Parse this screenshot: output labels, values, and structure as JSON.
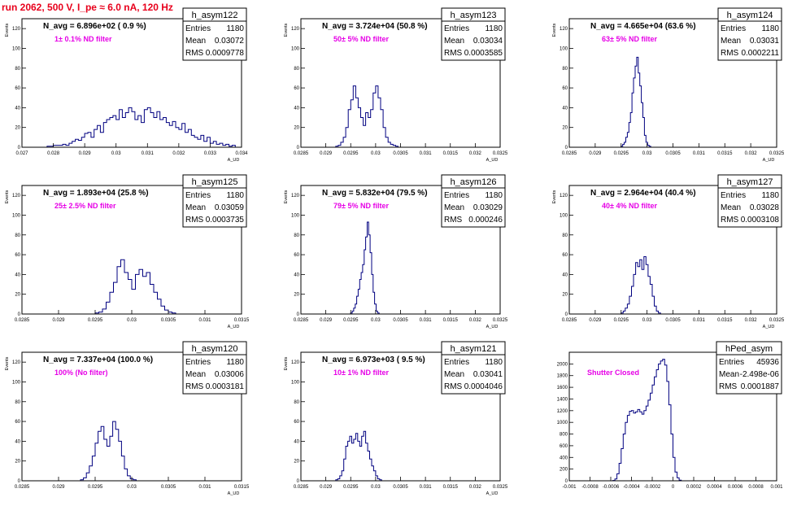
{
  "title": "run 2062,   500 V, I_pe ≈ 6.0 nA, 120 Hz",
  "chart_data": [
    {
      "type": "histogram",
      "name": "h_asym122",
      "n_avg_label": "N_avg = 6.896e+02 ( 0.9 %)",
      "filter_label": "1± 0.1% ND filter",
      "stats": {
        "entries": "1180",
        "mean": "0.03072",
        "rms": "0.0009778"
      },
      "ylabel": "Events",
      "xlabel": "A_UD",
      "xlim": [
        0.027,
        0.034
      ],
      "ylim": [
        0,
        130
      ],
      "xticks": [
        "0.027",
        "0.028",
        "0.029",
        "0.03",
        "0.031",
        "0.032",
        "0.033",
        "0.034"
      ],
      "yticks": [
        "0",
        "20",
        "40",
        "60",
        "80",
        "100",
        "120"
      ],
      "bin_start": 0.0278,
      "bin_width": 0.0001,
      "counts": [
        1,
        1,
        2,
        2,
        2,
        3,
        2,
        4,
        6,
        8,
        7,
        10,
        14,
        15,
        10,
        18,
        22,
        15,
        25,
        28,
        30,
        32,
        28,
        38,
        30,
        35,
        40,
        36,
        28,
        32,
        25,
        38,
        40,
        35,
        30,
        36,
        28,
        30,
        25,
        22,
        26,
        20,
        18,
        24,
        15,
        18,
        12,
        10,
        8,
        12,
        6,
        10,
        4,
        6,
        3,
        4,
        2,
        3,
        1,
        2
      ]
    },
    {
      "type": "histogram",
      "name": "h_asym123",
      "n_avg_label": "N_avg = 3.724e+04 (50.8 %)",
      "filter_label": "50± 5% ND filter",
      "stats": {
        "entries": "1180",
        "mean": "0.03034",
        "rms": "0.0003585"
      },
      "ylabel": "Events",
      "xlabel": "A_UD",
      "xlim": [
        0.0285,
        0.0325
      ],
      "ylim": [
        0,
        130
      ],
      "xticks": [
        "0.0285",
        "0.029",
        "0.0295",
        "0.03",
        "0.0305",
        "0.031",
        "0.0315",
        "0.032",
        "0.0325"
      ],
      "yticks": [
        "0",
        "20",
        "40",
        "60",
        "80",
        "100",
        "120"
      ],
      "bin_start": 0.0292,
      "bin_width": 5e-05,
      "counts": [
        1,
        2,
        5,
        10,
        20,
        38,
        48,
        62,
        50,
        40,
        30,
        22,
        35,
        30,
        38,
        55,
        62,
        50,
        38,
        20,
        10,
        5,
        3,
        2,
        1
      ]
    },
    {
      "type": "histogram",
      "name": "h_asym124",
      "n_avg_label": "N_avg = 4.665e+04 (63.6 %)",
      "filter_label": "63± 5% ND filter",
      "stats": {
        "entries": "1180",
        "mean": "0.03031",
        "rms": "0.0002211"
      },
      "ylabel": "Events",
      "xlabel": "A_UD",
      "xlim": [
        0.0285,
        0.0325
      ],
      "ylim": [
        0,
        130
      ],
      "xticks": [
        "0.0285",
        "0.029",
        "0.0295",
        "0.03",
        "0.0305",
        "0.031",
        "0.0315",
        "0.032",
        "0.0325"
      ],
      "yticks": [
        "0",
        "20",
        "40",
        "60",
        "80",
        "100",
        "120"
      ],
      "bin_start": 0.0295,
      "bin_width": 3e-05,
      "counts": [
        1,
        3,
        5,
        10,
        15,
        25,
        35,
        55,
        70,
        82,
        91,
        75,
        62,
        45,
        30,
        12,
        5,
        2,
        1
      ]
    },
    {
      "type": "histogram",
      "name": "h_asym125",
      "n_avg_label": "N_avg = 1.893e+04 (25.8 %)",
      "filter_label": "25± 2.5% ND filter",
      "stats": {
        "entries": "1180",
        "mean": "0.03059",
        "rms": "0.0003735"
      },
      "ylabel": "Events",
      "xlabel": "A_UD",
      "xlim": [
        0.0285,
        0.0315
      ],
      "ylim": [
        0,
        130
      ],
      "xticks": [
        "0.0285",
        "0.029",
        "0.0295",
        "0.03",
        "0.0305",
        "0.031",
        "0.0315"
      ],
      "yticks": [
        "0",
        "20",
        "40",
        "60",
        "80",
        "100",
        "120"
      ],
      "bin_start": 0.0295,
      "bin_width": 5e-05,
      "counts": [
        1,
        2,
        5,
        12,
        22,
        32,
        48,
        55,
        42,
        35,
        25,
        40,
        45,
        38,
        42,
        30,
        22,
        15,
        8,
        4,
        2,
        1
      ]
    },
    {
      "type": "histogram",
      "name": "h_asym126",
      "n_avg_label": "N_avg = 5.832e+04 (79.5 %)",
      "filter_label": "79± 5% ND filter",
      "stats": {
        "entries": "1180",
        "mean": "0.03029",
        "rms": "0.000246"
      },
      "ylabel": "Events",
      "xlabel": "A_UD",
      "xlim": [
        0.0285,
        0.0325
      ],
      "ylim": [
        0,
        130
      ],
      "xticks": [
        "0.0285",
        "0.029",
        "0.0295",
        "0.03",
        "0.0305",
        "0.031",
        "0.0315",
        "0.032",
        "0.0325"
      ],
      "yticks": [
        "0",
        "20",
        "40",
        "60",
        "80",
        "100",
        "120"
      ],
      "bin_start": 0.0295,
      "bin_width": 3e-05,
      "counts": [
        1,
        3,
        6,
        10,
        18,
        25,
        35,
        42,
        50,
        65,
        78,
        93,
        80,
        62,
        40,
        22,
        10,
        3,
        1
      ]
    },
    {
      "type": "histogram",
      "name": "h_asym127",
      "n_avg_label": "N_avg = 2.964e+04 (40.4 %)",
      "filter_label": "40± 4% ND filter",
      "stats": {
        "entries": "1180",
        "mean": "0.03028",
        "rms": "0.0003108"
      },
      "ylabel": "Events",
      "xlabel": "A_UD",
      "xlim": [
        0.0285,
        0.0325
      ],
      "ylim": [
        0,
        130
      ],
      "xticks": [
        "0.0285",
        "0.029",
        "0.0295",
        "0.03",
        "0.0305",
        "0.031",
        "0.0315",
        "0.032",
        "0.0325"
      ],
      "yticks": [
        "0",
        "20",
        "40",
        "60",
        "80",
        "100",
        "120"
      ],
      "bin_start": 0.0295,
      "bin_width": 4e-05,
      "counts": [
        1,
        3,
        6,
        10,
        18,
        28,
        40,
        52,
        48,
        55,
        45,
        58,
        50,
        38,
        30,
        18,
        8,
        3,
        1
      ]
    },
    {
      "type": "histogram",
      "name": "h_asym120",
      "n_avg_label": "N_avg = 7.337e+04 (100.0 %)",
      "filter_label": "100% (No filter)",
      "stats": {
        "entries": "1180",
        "mean": "0.03006",
        "rms": "0.0003181"
      },
      "ylabel": "Events",
      "xlabel": "A_UD",
      "xlim": [
        0.0285,
        0.0315
      ],
      "ylim": [
        0,
        130
      ],
      "xticks": [
        "0.0285",
        "0.029",
        "0.0295",
        "0.03",
        "0.0305",
        "0.031",
        "0.0315"
      ],
      "yticks": [
        "0",
        "20",
        "40",
        "60",
        "80",
        "100",
        "120"
      ],
      "bin_start": 0.0293,
      "bin_width": 4e-05,
      "counts": [
        1,
        3,
        8,
        15,
        25,
        38,
        50,
        55,
        42,
        35,
        45,
        60,
        52,
        40,
        25,
        12,
        5,
        2,
        1
      ]
    },
    {
      "type": "histogram",
      "name": "h_asym121",
      "n_avg_label": "N_avg = 6.973e+03 ( 9.5 %)",
      "filter_label": "10± 1% ND filter",
      "stats": {
        "entries": "1180",
        "mean": "0.03041",
        "rms": "0.0004046"
      },
      "ylabel": "Events",
      "xlabel": "A_UD",
      "xlim": [
        0.0285,
        0.0325
      ],
      "ylim": [
        0,
        130
      ],
      "xticks": [
        "0.0285",
        "0.029",
        "0.0295",
        "0.03",
        "0.0305",
        "0.031",
        "0.0315",
        "0.032",
        "0.0325"
      ],
      "yticks": [
        "0",
        "20",
        "40",
        "60",
        "80",
        "100",
        "120"
      ],
      "bin_start": 0.0292,
      "bin_width": 4e-05,
      "counts": [
        1,
        2,
        5,
        10,
        22,
        35,
        40,
        45,
        38,
        42,
        48,
        40,
        35,
        45,
        50,
        38,
        30,
        22,
        15,
        10,
        5,
        2,
        1
      ]
    },
    {
      "type": "histogram",
      "name": "hPed_asym",
      "n_avg_label": "",
      "filter_label": "Shutter Closed",
      "stats": {
        "entries": "45936",
        "mean": "-2.498e-06",
        "rms": "0.0001887"
      },
      "ylabel": "",
      "xlabel": "",
      "xlim": [
        -0.001,
        0.001
      ],
      "ylim": [
        0,
        2200
      ],
      "xticks": [
        "-0.001",
        "-0.0008",
        "-0.0006",
        "-0.0004",
        "-0.0002",
        "0",
        "0.0002",
        "0.0004",
        "0.0006",
        "0.0008",
        "0.001"
      ],
      "yticks": [
        "0",
        "200",
        "400",
        "600",
        "800",
        "1000",
        "1200",
        "1400",
        "1600",
        "1800",
        "2000"
      ],
      "bin_start": -0.00058,
      "bin_width": 2e-05,
      "counts": [
        5,
        30,
        120,
        300,
        550,
        800,
        1000,
        1120,
        1190,
        1200,
        1160,
        1180,
        1220,
        1180,
        1140,
        1200,
        1280,
        1380,
        1500,
        1640,
        1780,
        1900,
        2000,
        2050,
        2080,
        1980,
        1700,
        1300,
        800,
        400,
        150,
        50,
        10
      ]
    }
  ]
}
